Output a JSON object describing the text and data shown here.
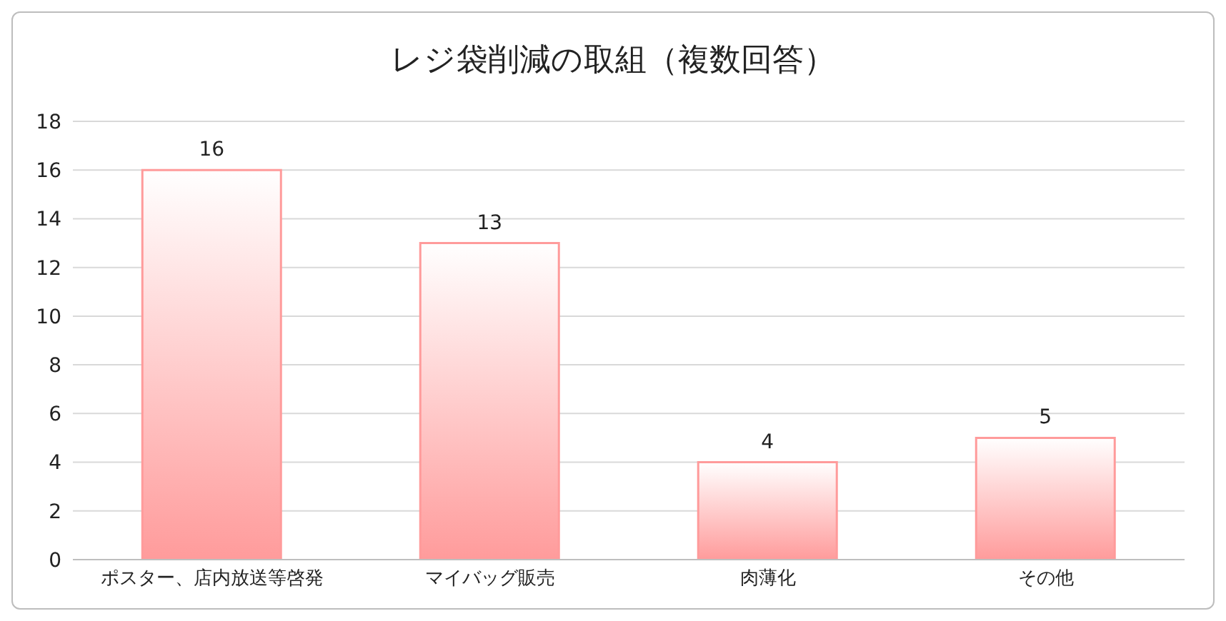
{
  "chart_data": {
    "type": "bar",
    "title": "レジ袋削減の取組（複数回答）",
    "categories": [
      "ポスター、店内放送等啓発",
      "マイバッグ販売",
      "肉薄化",
      "その他"
    ],
    "values": [
      16,
      13,
      4,
      5
    ],
    "color": "#ff9b9b",
    "ylim": [
      0,
      18
    ],
    "yticks": [
      0,
      2,
      4,
      6,
      8,
      10,
      12,
      14,
      16,
      18
    ],
    "grid": "y",
    "data_labels": true,
    "legend": false
  }
}
